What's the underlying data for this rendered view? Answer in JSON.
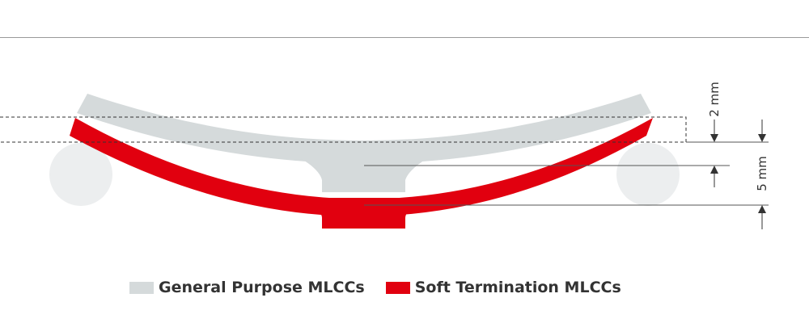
{
  "colors": {
    "general_purpose": "#d5dadb",
    "soft_termination": "#e1000f",
    "support_rollers": "#eceeef",
    "lines": "#555555"
  },
  "dimensions": {
    "upper": "2 mm",
    "lower": "5 mm"
  },
  "legend": {
    "items": [
      {
        "label": "General Purpose MLCCs",
        "color": "#d5dadb"
      },
      {
        "label": "Soft Termination MLCCs",
        "color": "#e1000f"
      }
    ]
  }
}
